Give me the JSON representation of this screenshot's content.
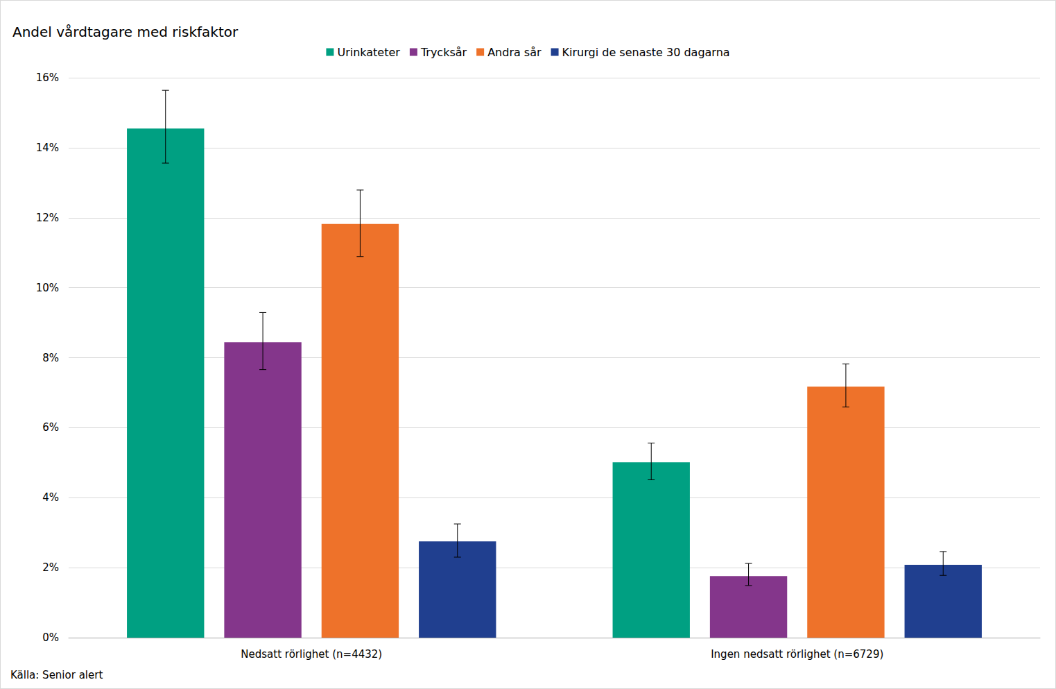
{
  "chart_data": {
    "type": "bar",
    "title": "Andel vårdtagare med riskfaktor",
    "source": "Källa: Senior alert",
    "categories": [
      "Nedsatt rörlighet (n=4432)",
      "Ingen nedsatt rörlighet (n=6729)"
    ],
    "series": [
      {
        "name": "Urinkateter",
        "color": "#00a082",
        "values": [
          14.55,
          5.01
        ],
        "error_lower": [
          13.56,
          4.51
        ],
        "error_upper": [
          15.64,
          5.56
        ]
      },
      {
        "name": "Trycksår",
        "color": "#84368b",
        "values": [
          8.44,
          1.76
        ],
        "error_lower": [
          7.66,
          1.49
        ],
        "error_upper": [
          9.29,
          2.12
        ]
      },
      {
        "name": "Andra sår",
        "color": "#ee722a",
        "values": [
          11.82,
          7.17
        ],
        "error_lower": [
          10.89,
          6.59
        ],
        "error_upper": [
          12.79,
          7.82
        ]
      },
      {
        "name": "Kirurgi de senaste 30 dagarna",
        "color": "#203f8f",
        "values": [
          2.75,
          2.08
        ],
        "error_lower": [
          2.3,
          1.78
        ],
        "error_upper": [
          3.25,
          2.46
        ]
      }
    ],
    "ylim": [
      0,
      16
    ],
    "yticks": [
      {
        "value": 0,
        "label": "0%"
      },
      {
        "value": 2,
        "label": "2%"
      },
      {
        "value": 4,
        "label": "4%"
      },
      {
        "value": 6,
        "label": "6%"
      },
      {
        "value": 8,
        "label": "8%"
      },
      {
        "value": 10,
        "label": "10%"
      },
      {
        "value": 12,
        "label": "12%"
      },
      {
        "value": 14,
        "label": "14%"
      },
      {
        "value": 16,
        "label": "16%"
      }
    ],
    "grid": true,
    "legend": "top"
  }
}
